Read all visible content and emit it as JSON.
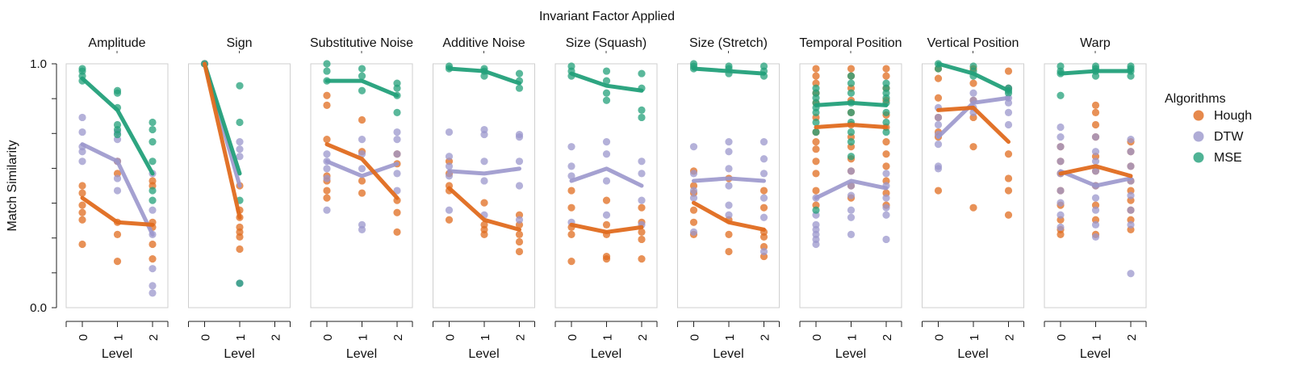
{
  "chart_data": {
    "type": "scatter",
    "title": "Invariant Factor Applied",
    "ylabel": "Match Similarity",
    "xlabel": "Level",
    "ylim": [
      0,
      1
    ],
    "y_ticks": [
      "1.0",
      "0.0"
    ],
    "x_ticks": [
      "0",
      "1",
      "2"
    ],
    "legend": {
      "title": "Algorithms",
      "placement": "right",
      "entries": [
        "Hough",
        "DTW",
        "MSE"
      ]
    },
    "colors": {
      "Hough": "#e06c1f",
      "DTW": "#9b97cc",
      "MSE": "#23a07a"
    },
    "grid": false,
    "panels": [
      {
        "name": "Amplitude",
        "levels": [
          0,
          1,
          2
        ],
        "means": {
          "Hough": [
            0.45,
            0.35,
            0.34
          ],
          "DTW": [
            0.67,
            0.6,
            0.3
          ],
          "MSE": [
            0.94,
            0.81,
            0.55
          ]
        },
        "points": {
          "Hough": [
            [
              0.26,
              0.36,
              0.39,
              0.42,
              0.47,
              0.5
            ],
            [
              0.19,
              0.3,
              0.35,
              0.55,
              0.6
            ],
            [
              0.2,
              0.26,
              0.33,
              0.35,
              0.5,
              0.52
            ]
          ],
          "DTW": [
            [
              0.6,
              0.64,
              0.66,
              0.72,
              0.78
            ],
            [
              0.48,
              0.53,
              0.6,
              0.69,
              0.72
            ],
            [
              0.06,
              0.09,
              0.16,
              0.3,
              0.4,
              0.55
            ]
          ],
          "MSE": [
            [
              0.93,
              0.95,
              0.97,
              0.98
            ],
            [
              0.71,
              0.73,
              0.75,
              0.82,
              0.88,
              0.89
            ],
            [
              0.44,
              0.48,
              0.6,
              0.68,
              0.73,
              0.76
            ]
          ]
        }
      },
      {
        "name": "Sign",
        "levels": [
          0,
          1
        ],
        "means": {
          "Hough": [
            1.0,
            0.37
          ],
          "DTW": [
            1.0,
            0.5
          ],
          "MSE": [
            1.0,
            0.55
          ]
        },
        "points": {
          "Hough": [
            [
              1.0
            ],
            [
              0.24,
              0.29,
              0.31,
              0.33,
              0.37,
              0.4,
              0.5
            ]
          ],
          "DTW": [
            [
              1.0
            ],
            [
              0.1,
              0.62,
              0.65,
              0.68
            ]
          ],
          "MSE": [
            [
              1.0
            ],
            [
              0.1,
              0.44,
              0.76,
              0.91
            ]
          ]
        }
      },
      {
        "name": "Substitutive Noise",
        "levels": [
          0,
          1,
          2
        ],
        "means": {
          "Hough": [
            0.67,
            0.61,
            0.45
          ],
          "DTW": [
            0.6,
            0.54,
            0.59
          ],
          "MSE": [
            0.93,
            0.93,
            0.87
          ]
        },
        "points": {
          "Hough": [
            [
              0.45,
              0.48,
              0.52,
              0.54,
              0.69,
              0.83,
              0.87
            ],
            [
              0.47,
              0.52,
              0.64,
              0.77
            ],
            [
              0.31,
              0.39,
              0.44,
              0.59,
              0.63
            ]
          ],
          "DTW": [
            [
              0.4,
              0.53,
              0.57,
              0.6,
              0.63
            ],
            [
              0.32,
              0.34,
              0.57,
              0.63,
              0.69
            ],
            [
              0.48,
              0.55,
              0.63,
              0.69,
              0.72
            ]
          ],
          "MSE": [
            [
              0.93,
              0.97,
              1.0
            ],
            [
              0.89,
              0.95,
              0.98
            ],
            [
              0.8,
              0.87,
              0.9,
              0.92
            ]
          ]
        }
      },
      {
        "name": "Additive Noise",
        "levels": [
          0,
          1,
          2
        ],
        "means": {
          "Hough": [
            0.49,
            0.36,
            0.32
          ],
          "DTW": [
            0.56,
            0.55,
            0.57
          ],
          "MSE": [
            0.98,
            0.97,
            0.92
          ]
        },
        "points": {
          "Hough": [
            [
              0.36,
              0.48,
              0.5,
              0.55,
              0.6
            ],
            [
              0.3,
              0.32,
              0.34,
              0.43
            ],
            [
              0.23,
              0.27,
              0.3,
              0.34,
              0.38
            ]
          ],
          "DTW": [
            [
              0.4,
              0.54,
              0.58,
              0.62,
              0.72
            ],
            [
              0.38,
              0.52,
              0.6,
              0.71,
              0.73
            ],
            [
              0.36,
              0.5,
              0.6,
              0.7,
              0.71
            ]
          ],
          "MSE": [
            [
              0.98,
              0.99
            ],
            [
              0.95,
              0.97,
              0.98
            ],
            [
              0.9,
              0.93,
              0.96
            ]
          ]
        }
      },
      {
        "name": "Size (Squash)",
        "levels": [
          0,
          1,
          2
        ],
        "means": {
          "Hough": [
            0.34,
            0.31,
            0.33
          ],
          "DTW": [
            0.52,
            0.57,
            0.5
          ],
          "MSE": [
            0.96,
            0.91,
            0.89
          ]
        },
        "points": {
          "Hough": [
            [
              0.19,
              0.3,
              0.33,
              0.41,
              0.48
            ],
            [
              0.2,
              0.21,
              0.3,
              0.34,
              0.44
            ],
            [
              0.2,
              0.28,
              0.31,
              0.35,
              0.41
            ]
          ],
          "DTW": [
            [
              0.35,
              0.54,
              0.58,
              0.66
            ],
            [
              0.38,
              0.52,
              0.63,
              0.68
            ],
            [
              0.34,
              0.44,
              0.55,
              0.6
            ]
          ],
          "MSE": [
            [
              0.95,
              0.97,
              0.99
            ],
            [
              0.85,
              0.88,
              0.93,
              0.97
            ],
            [
              0.78,
              0.81,
              0.9,
              0.96
            ]
          ]
        }
      },
      {
        "name": "Size (Stretch)",
        "levels": [
          0,
          1,
          2
        ],
        "means": {
          "Hough": [
            0.43,
            0.35,
            0.32
          ],
          "DTW": [
            0.52,
            0.53,
            0.52
          ],
          "MSE": [
            0.98,
            0.97,
            0.96
          ]
        },
        "points": {
          "Hough": [
            [
              0.3,
              0.35,
              0.4,
              0.47,
              0.5,
              0.56
            ],
            [
              0.23,
              0.3,
              0.36,
              0.53
            ],
            [
              0.21,
              0.25,
              0.29,
              0.31,
              0.41,
              0.48
            ]
          ],
          "DTW": [
            [
              0.31,
              0.45,
              0.48,
              0.55,
              0.66
            ],
            [
              0.38,
              0.42,
              0.5,
              0.57,
              0.64,
              0.68
            ],
            [
              0.23,
              0.37,
              0.45,
              0.55,
              0.61,
              0.68
            ]
          ],
          "MSE": [
            [
              0.98,
              0.99,
              1.0
            ],
            [
              0.96,
              0.98,
              0.99
            ],
            [
              0.95,
              0.97,
              0.99
            ]
          ]
        }
      },
      {
        "name": "Temporal Position",
        "levels": [
          0,
          1,
          2
        ],
        "means": {
          "Hough": [
            0.74,
            0.75,
            0.74
          ],
          "DTW": [
            0.45,
            0.52,
            0.49
          ],
          "MSE": [
            0.83,
            0.84,
            0.83
          ]
        },
        "points": {
          "Hough": [
            [
              0.42,
              0.48,
              0.55,
              0.6,
              0.65,
              0.68,
              0.72,
              0.78,
              0.84,
              0.88,
              0.92,
              0.95,
              0.98
            ],
            [
              0.45,
              0.5,
              0.56,
              0.61,
              0.66,
              0.7,
              0.75,
              0.8,
              0.85,
              0.9,
              0.95,
              0.98
            ],
            [
              0.42,
              0.47,
              0.52,
              0.58,
              0.63,
              0.68,
              0.74,
              0.79,
              0.85,
              0.9,
              0.95,
              0.98
            ]
          ],
          "DTW": [
            [
              0.26,
              0.28,
              0.3,
              0.32,
              0.34,
              0.38,
              0.45
            ],
            [
              0.3,
              0.37,
              0.4,
              0.46,
              0.5,
              0.56
            ],
            [
              0.28,
              0.38,
              0.41,
              0.45,
              0.5,
              0.55
            ]
          ],
          "MSE": [
            [
              0.4,
              0.72,
              0.76,
              0.8,
              0.82,
              0.84,
              0.86,
              0.88,
              0.9
            ],
            [
              0.62,
              0.68,
              0.72,
              0.76,
              0.8,
              0.84,
              0.88,
              0.92,
              0.95
            ],
            [
              0.72,
              0.76,
              0.8,
              0.84,
              0.86,
              0.88,
              0.9,
              0.92
            ]
          ]
        }
      },
      {
        "name": "Vertical Position",
        "levels": [
          0,
          1,
          2
        ],
        "means": {
          "Hough": [
            0.81,
            0.82,
            0.68
          ],
          "DTW": [
            0.7,
            0.84,
            0.86
          ],
          "MSE": [
            1.0,
            0.96,
            0.89
          ]
        },
        "points": {
          "Hough": [
            [
              0.48,
              0.7,
              0.72,
              0.78,
              0.86,
              0.94,
              0.98
            ],
            [
              0.41,
              0.66,
              0.78,
              0.85,
              0.92,
              0.98
            ],
            [
              0.38,
              0.48,
              0.53,
              0.63,
              0.9,
              0.97
            ]
          ],
          "DTW": [
            [
              0.57,
              0.58,
              0.67,
              0.71,
              0.75,
              0.78,
              0.82
            ],
            [
              0.8,
              0.82,
              0.85,
              0.88
            ],
            [
              0.75,
              0.8,
              0.84,
              0.86,
              0.9
            ]
          ],
          "MSE": [
            [
              0.98,
              1.0
            ],
            [
              0.95,
              0.97,
              0.99
            ],
            [
              0.88,
              0.89,
              0.9
            ]
          ]
        }
      },
      {
        "name": "Warp",
        "levels": [
          0,
          1,
          2
        ],
        "means": {
          "Hough": [
            0.55,
            0.58,
            0.54
          ],
          "DTW": [
            0.56,
            0.5,
            0.53
          ],
          "MSE": [
            0.96,
            0.97,
            0.97
          ]
        },
        "points": {
          "Hough": [
            [
              0.3,
              0.32,
              0.36,
              0.42,
              0.48,
              0.55,
              0.6,
              0.66
            ],
            [
              0.3,
              0.36,
              0.42,
              0.5,
              0.56,
              0.62,
              0.7,
              0.75,
              0.8,
              0.83
            ],
            [
              0.32,
              0.36,
              0.4,
              0.44,
              0.48,
              0.52,
              0.58,
              0.64,
              0.68
            ]
          ],
          "DTW": [
            [
              0.33,
              0.38,
              0.43,
              0.48,
              0.55,
              0.6,
              0.66,
              0.7,
              0.74
            ],
            [
              0.29,
              0.34,
              0.4,
              0.45,
              0.5,
              0.56,
              0.6,
              0.64,
              0.7
            ],
            [
              0.14,
              0.34,
              0.4,
              0.46,
              0.52,
              0.58,
              0.64,
              0.69
            ]
          ],
          "MSE": [
            [
              0.87,
              0.96,
              0.97,
              0.99
            ],
            [
              0.95,
              0.97,
              0.98,
              0.99
            ],
            [
              0.95,
              0.97,
              0.98,
              0.99
            ]
          ]
        }
      }
    ]
  }
}
